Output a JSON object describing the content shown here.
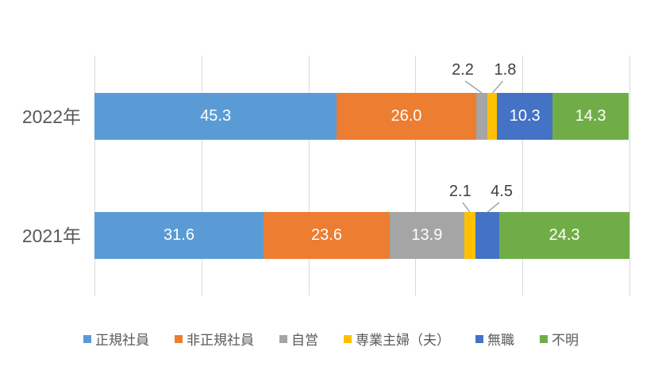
{
  "chart_data": {
    "type": "bar",
    "variant": "horizontal-stacked",
    "title": "",
    "categories": [
      "2022年",
      "2021年"
    ],
    "series": [
      {
        "name": "正規社員",
        "color": "#5B9BD5",
        "values": [
          45.3,
          31.6
        ]
      },
      {
        "name": "非正規社員",
        "color": "#ED7D31",
        "values": [
          26.0,
          23.6
        ]
      },
      {
        "name": "自営",
        "color": "#A5A5A5",
        "values": [
          2.2,
          13.9
        ]
      },
      {
        "name": "専業主婦（夫）",
        "color": "#FFC000",
        "values": [
          1.8,
          2.1
        ]
      },
      {
        "name": "無職",
        "color": "#4472C4",
        "values": [
          10.3,
          4.5
        ]
      },
      {
        "name": "不明",
        "color": "#70AD47",
        "values": [
          14.3,
          24.3
        ]
      }
    ],
    "xlim": [
      0,
      100
    ],
    "grid": true,
    "grid_step": 20,
    "axis_tick_labels_visible": false,
    "legend_position": "bottom",
    "data_labels": true,
    "value_decimals": 1,
    "callout_threshold": 6,
    "callout_dx": [
      [
        -24,
        16
      ],
      [
        -12,
        18
      ]
    ]
  },
  "colors": {
    "background": "#FFFFFF",
    "gridline": "#D9D9D9",
    "category_text": "#595959",
    "data_label_text": "#FFFFFF",
    "callout_text": "#404040",
    "leader_line": "#A6A6A6",
    "legend_text": "#595959"
  }
}
